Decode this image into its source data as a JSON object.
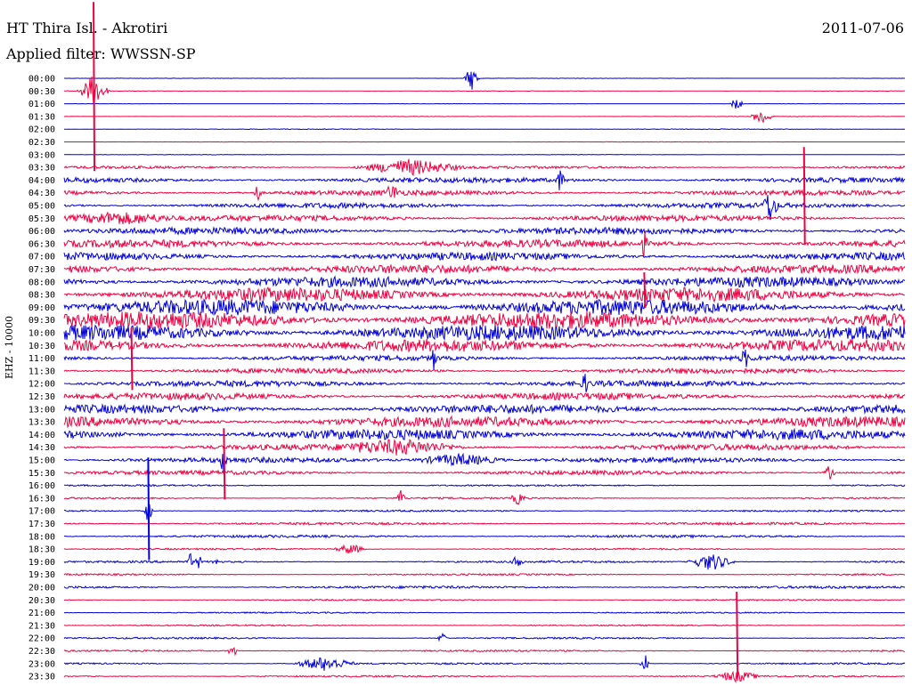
{
  "header": {
    "station": "HT Thira Isl. - Akrotiri",
    "date": "2011-07-06",
    "filter": "Applied filter: WWSSN-SP"
  },
  "axis": {
    "channel_label": "EHZ - 10000"
  },
  "colors": {
    "odd": "#0000d8",
    "even": "#f00040",
    "text": "#000000"
  },
  "chart_data": {
    "type": "line",
    "title": "HT Thira Isl. - Akrotiri",
    "subtitle": "Applied filter: WWSSN-SP",
    "ylabel": "EHZ - 10000",
    "row_labels": [
      "00:00",
      "00:30",
      "01:00",
      "01:30",
      "02:00",
      "02:30",
      "03:00",
      "03:30",
      "04:00",
      "04:30",
      "05:00",
      "05:30",
      "06:00",
      "06:30",
      "07:00",
      "07:30",
      "08:00",
      "08:30",
      "09:00",
      "09:30",
      "10:00",
      "10:30",
      "11:00",
      "11:30",
      "12:00",
      "12:30",
      "13:00",
      "13:30",
      "14:00",
      "14:30",
      "15:00",
      "15:30",
      "16:00",
      "16:30",
      "17:00",
      "17:30",
      "18:00",
      "18:30",
      "19:00",
      "19:30",
      "20:00",
      "20:30",
      "21:00",
      "21:30",
      "22:00",
      "22:30",
      "23:00",
      "23:30"
    ],
    "noise_level": [
      0.2,
      0.3,
      0.2,
      0.3,
      0.4,
      0.2,
      0.3,
      1.5,
      3,
      3,
      3,
      3.5,
      4,
      4.5,
      4.5,
      5,
      6,
      8,
      9,
      10,
      9,
      7,
      3,
      3,
      3.5,
      4,
      5,
      6,
      6,
      3.5,
      3,
      2.5,
      1,
      1,
      1,
      1.5,
      1.5,
      1,
      1.2,
      1,
      1.5,
      0.8,
      0.8,
      0.8,
      1,
      1,
      1,
      1
    ],
    "events": [
      {
        "row": 0,
        "x": 0.485,
        "amp": 14,
        "len": 0.01
      },
      {
        "row": 1,
        "x": 0.035,
        "amp": 18,
        "len": 0.02
      },
      {
        "row": 2,
        "x": 0.8,
        "amp": 10,
        "len": 0.008
      },
      {
        "row": 3,
        "x": 0.83,
        "amp": 9,
        "len": 0.015
      },
      {
        "row": 7,
        "x": 0.41,
        "amp": 9,
        "len": 0.07
      },
      {
        "row": 8,
        "x": 0.59,
        "amp": 12,
        "len": 0.006
      },
      {
        "row": 9,
        "x": 0.23,
        "amp": 10,
        "len": 0.005
      },
      {
        "row": 9,
        "x": 0.39,
        "amp": 8,
        "len": 0.01
      },
      {
        "row": 10,
        "x": 0.84,
        "amp": 18,
        "len": 0.01
      },
      {
        "row": 11,
        "x": 0.06,
        "amp": 7,
        "len": 0.08
      },
      {
        "row": 13,
        "x": 0.69,
        "amp": 14,
        "len": 0.004
      },
      {
        "row": 22,
        "x": 0.44,
        "amp": 14,
        "len": 0.004
      },
      {
        "row": 22,
        "x": 0.81,
        "amp": 10,
        "len": 0.006
      },
      {
        "row": 24,
        "x": 0.62,
        "amp": 10,
        "len": 0.006
      },
      {
        "row": 29,
        "x": 0.4,
        "amp": 7,
        "len": 0.08
      },
      {
        "row": 30,
        "x": 0.19,
        "amp": 14,
        "len": 0.006
      },
      {
        "row": 30,
        "x": 0.47,
        "amp": 7,
        "len": 0.06
      },
      {
        "row": 31,
        "x": 0.91,
        "amp": 8,
        "len": 0.008
      },
      {
        "row": 33,
        "x": 0.4,
        "amp": 10,
        "len": 0.006
      },
      {
        "row": 33,
        "x": 0.54,
        "amp": 7,
        "len": 0.01
      },
      {
        "row": 34,
        "x": 0.1,
        "amp": 14,
        "len": 0.006
      },
      {
        "row": 37,
        "x": 0.34,
        "amp": 6,
        "len": 0.02
      },
      {
        "row": 38,
        "x": 0.15,
        "amp": 10,
        "len": 0.004
      },
      {
        "row": 38,
        "x": 0.16,
        "amp": 9,
        "len": 0.004
      },
      {
        "row": 38,
        "x": 0.18,
        "amp": 8,
        "len": 0.004
      },
      {
        "row": 38,
        "x": 0.54,
        "amp": 8,
        "len": 0.008
      },
      {
        "row": 38,
        "x": 0.77,
        "amp": 10,
        "len": 0.03
      },
      {
        "row": 44,
        "x": 0.45,
        "amp": 7,
        "len": 0.006
      },
      {
        "row": 45,
        "x": 0.2,
        "amp": 9,
        "len": 0.006
      },
      {
        "row": 46,
        "x": 0.31,
        "amp": 8,
        "len": 0.04
      },
      {
        "row": 46,
        "x": 0.69,
        "amp": 14,
        "len": 0.006
      },
      {
        "row": 47,
        "x": 0.8,
        "amp": 6,
        "len": 0.03
      }
    ],
    "big_spikes": [
      {
        "row": 1,
        "x": 0.035,
        "up": 100,
        "down": 90
      },
      {
        "row": 11,
        "x": 0.88,
        "up": 80,
        "down": 30
      },
      {
        "row": 17,
        "x": 0.69,
        "up": 25,
        "down": 15
      },
      {
        "row": 21,
        "x": 0.08,
        "up": 20,
        "down": 50
      },
      {
        "row": 34,
        "x": 0.1,
        "up": 60,
        "down": 55
      },
      {
        "row": 31,
        "x": 0.19,
        "up": 50,
        "down": 30
      },
      {
        "row": 47,
        "x": 0.8,
        "up": 95,
        "down": 0
      }
    ]
  }
}
